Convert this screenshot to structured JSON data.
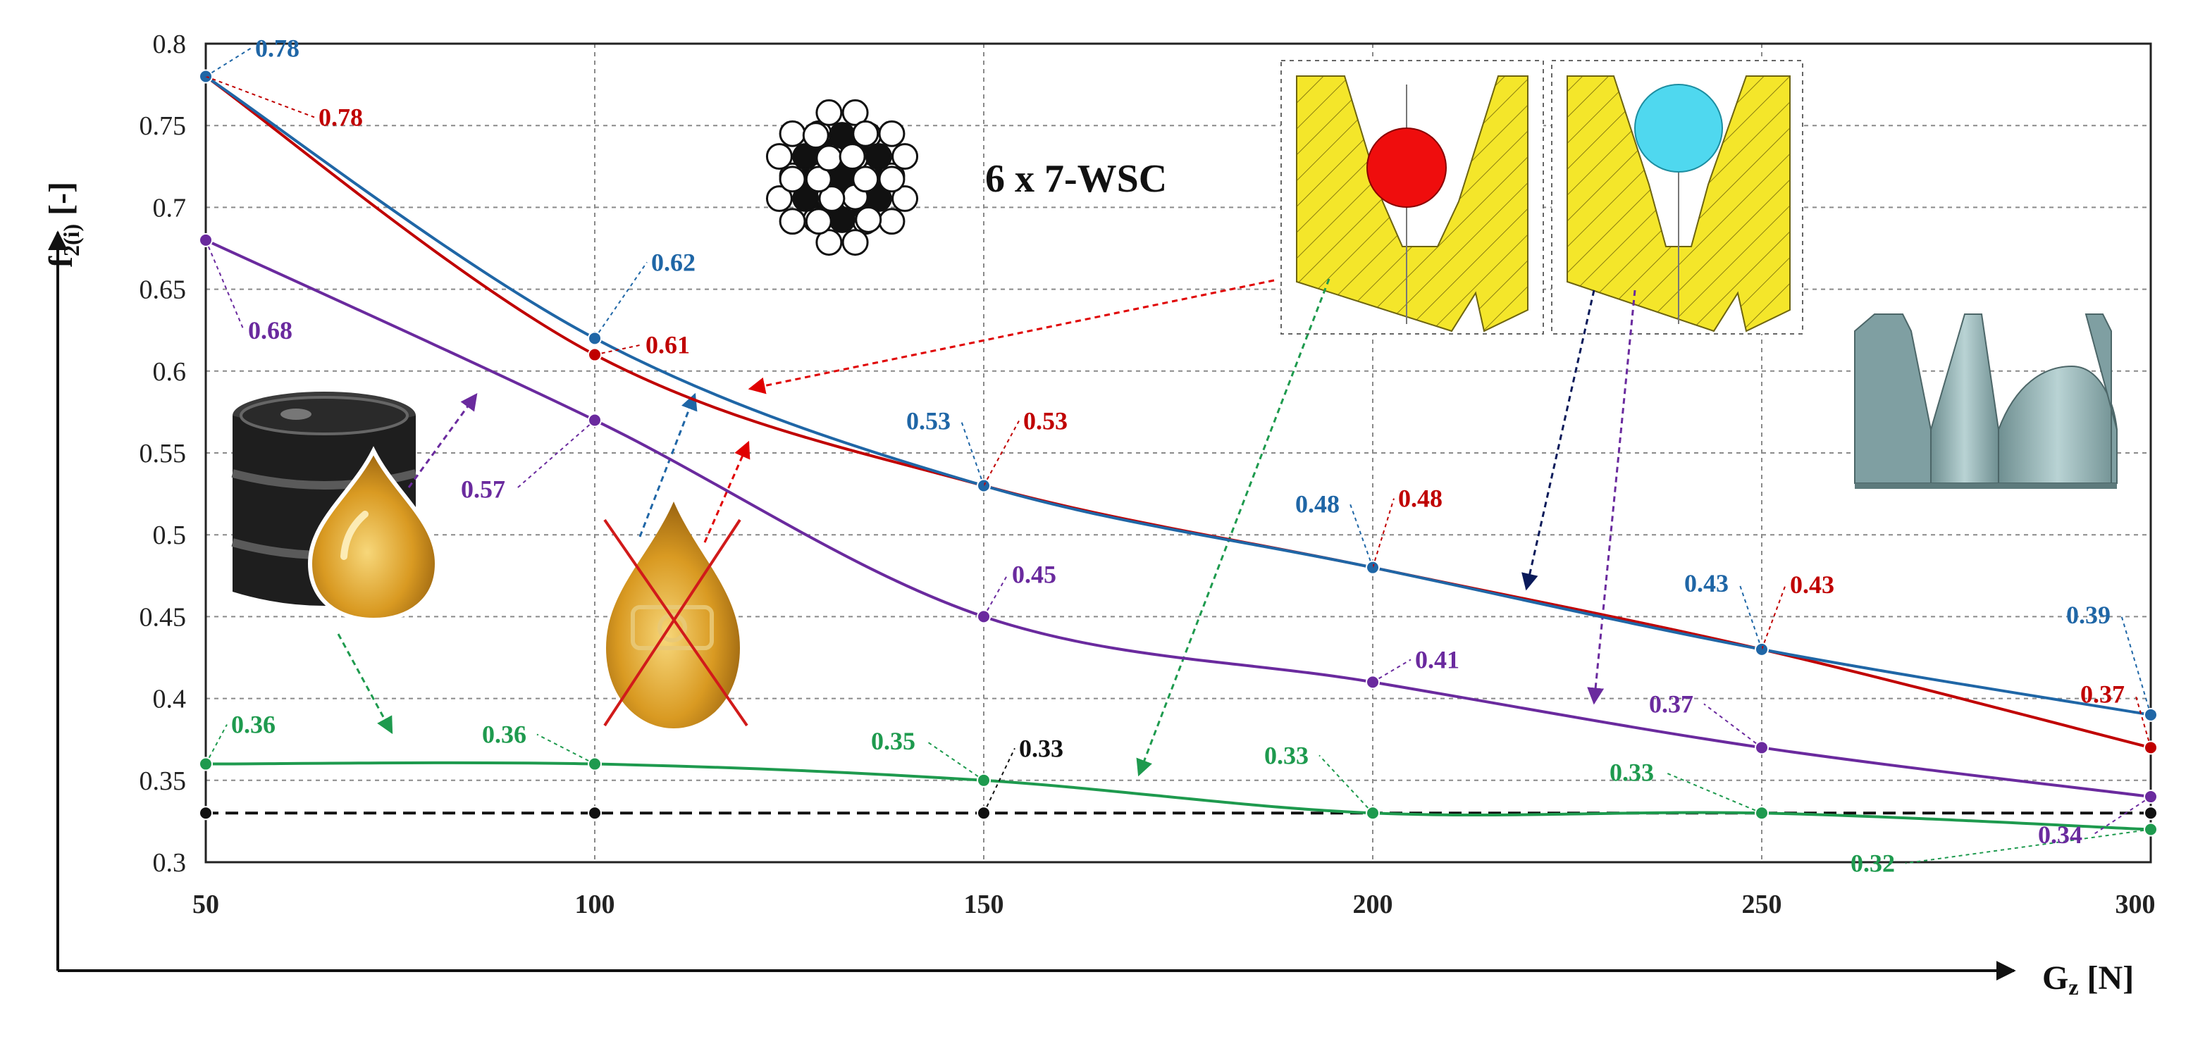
{
  "chart_data": {
    "type": "line",
    "title": "",
    "xlabel_main": "G",
    "xlabel_sub": "z",
    "xlabel_unit": " [N]",
    "ylabel_main": "f",
    "ylabel_sub": "2(i)",
    "ylabel_unit": " [-]",
    "x": [
      50,
      100,
      150,
      200,
      250,
      300
    ],
    "xlim": [
      50,
      300
    ],
    "ylim": [
      0.3,
      0.8
    ],
    "yticks": [
      "0.3",
      "0.35",
      "0.4",
      "0.45",
      "0.5",
      "0.55",
      "0.6",
      "0.65",
      "0.7",
      "0.75",
      "0.8"
    ],
    "xticks": [
      "50",
      "100",
      "150",
      "200",
      "250",
      "300"
    ],
    "grid": true,
    "series": [
      {
        "name": "blue",
        "color": "#1f66a6",
        "values": [
          0.78,
          0.62,
          0.53,
          0.48,
          0.43,
          0.39
        ],
        "labels": [
          "0.78",
          "0.62",
          "0.53",
          "0.48",
          "0.43",
          "0.39"
        ]
      },
      {
        "name": "red",
        "color": "#c00000",
        "values": [
          0.78,
          0.61,
          0.53,
          0.48,
          0.43,
          0.37
        ],
        "labels": [
          "0.78",
          "0.61",
          "0.53",
          "0.48",
          "0.43",
          "0.37"
        ]
      },
      {
        "name": "purple",
        "color": "#6a2a9e",
        "values": [
          0.68,
          0.57,
          0.45,
          0.41,
          0.37,
          0.34
        ],
        "labels": [
          "0.68",
          "0.57",
          "0.45",
          "0.41",
          "0.37",
          "0.34"
        ]
      },
      {
        "name": "green",
        "color": "#1e9a4e",
        "values": [
          0.36,
          0.36,
          0.35,
          0.33,
          0.33,
          0.32
        ],
        "labels": [
          "0.36",
          "0.36",
          "0.35",
          "0.33",
          "0.33",
          "0.32"
        ]
      },
      {
        "name": "black-dashed",
        "color": "#111111",
        "dashed": true,
        "values": [
          0.33,
          0.33,
          0.33,
          0.33,
          0.33,
          0.33
        ],
        "labels": [
          "",
          "",
          "0.33",
          "",
          "",
          ""
        ]
      }
    ],
    "annotations": {
      "rope_label": "6 x 7-WSC"
    }
  }
}
